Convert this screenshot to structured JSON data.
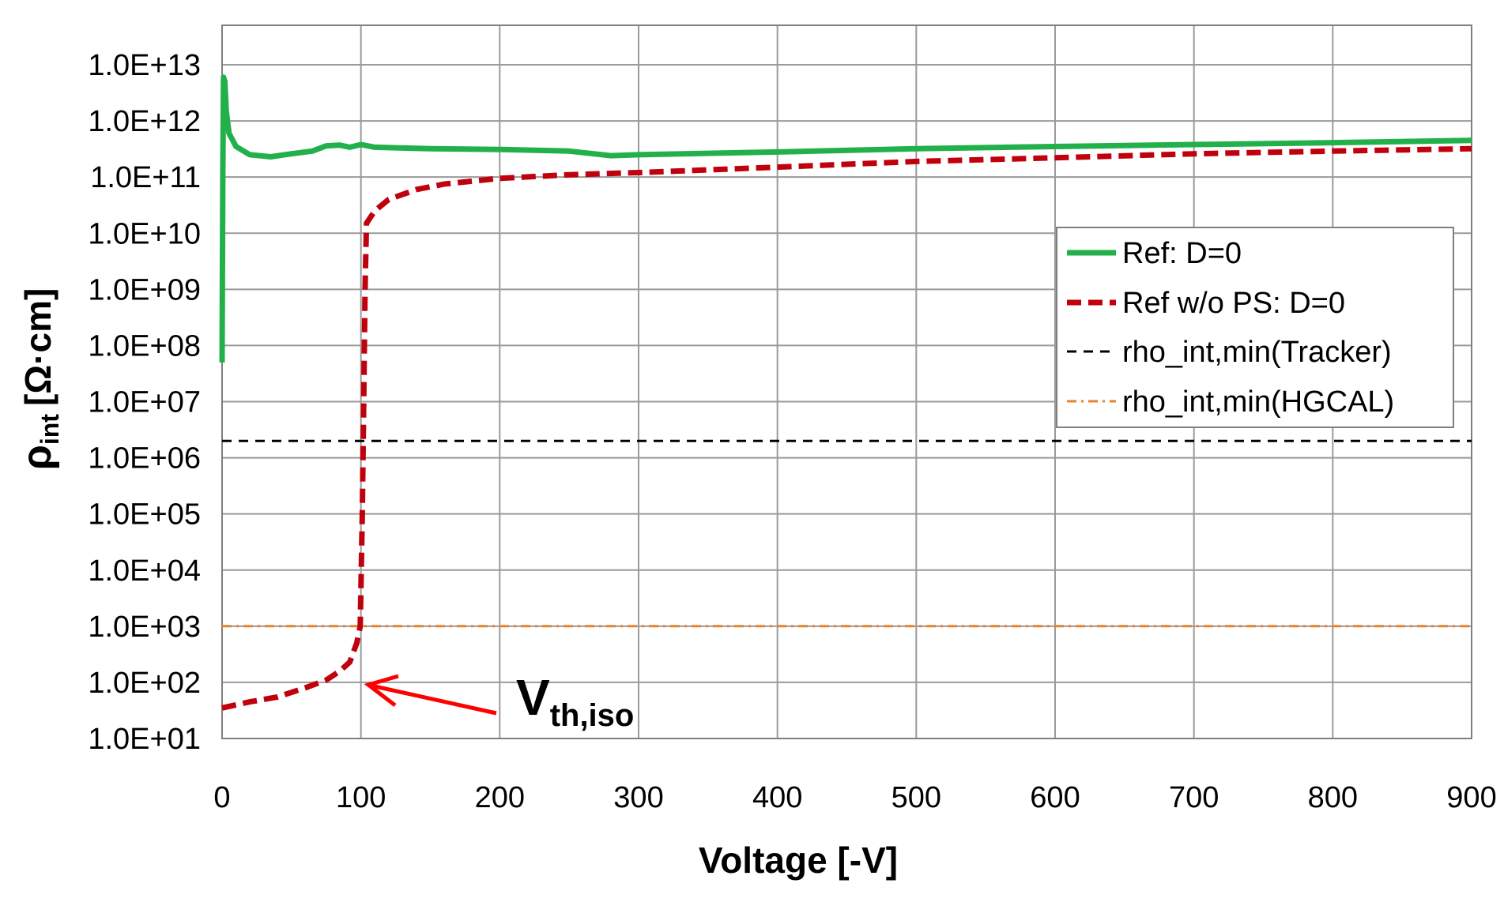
{
  "chart_data": {
    "type": "line",
    "xlabel": "Voltage [-V]",
    "ylabel": {
      "main": "ρ",
      "sub": "int",
      "unit": "[Ω·cm]"
    },
    "xlim": [
      0,
      900
    ],
    "ylim": [
      10,
      10000000000000.0
    ],
    "y_scale": "log",
    "grid": true,
    "legend_position": "right, upper-middle",
    "x_ticks": [
      {
        "value": 0,
        "label": "0"
      },
      {
        "value": 100,
        "label": "100"
      },
      {
        "value": 200,
        "label": "200"
      },
      {
        "value": 300,
        "label": "300"
      },
      {
        "value": 400,
        "label": "400"
      },
      {
        "value": 500,
        "label": "500"
      },
      {
        "value": 600,
        "label": "600"
      },
      {
        "value": 700,
        "label": "700"
      },
      {
        "value": 800,
        "label": "800"
      },
      {
        "value": 900,
        "label": "900"
      }
    ],
    "y_ticks": [
      {
        "value": 10,
        "label": "1.0E+01"
      },
      {
        "value": 100,
        "label": "1.0E+02"
      },
      {
        "value": 1000,
        "label": "1.0E+03"
      },
      {
        "value": 10000,
        "label": "1.0E+04"
      },
      {
        "value": 100000,
        "label": "1.0E+05"
      },
      {
        "value": 1000000,
        "label": "1.0E+06"
      },
      {
        "value": 10000000,
        "label": "1.0E+07"
      },
      {
        "value": 100000000,
        "label": "1.0E+08"
      },
      {
        "value": 1000000000,
        "label": "1.0E+09"
      },
      {
        "value": 10000000000,
        "label": "1.0E+10"
      },
      {
        "value": 100000000000,
        "label": "1.0E+11"
      },
      {
        "value": 1000000000000,
        "label": "1.0E+12"
      },
      {
        "value": 10000000000000,
        "label": "1.0E+13"
      }
    ],
    "series": [
      {
        "name": "Ref: D=0",
        "color": "#22b04a",
        "style": "solid",
        "points": [
          [
            0,
            50000000.0
          ],
          [
            0.5,
            100000000000.0
          ],
          [
            1,
            6000000000000.0
          ],
          [
            2,
            5000000000000.0
          ],
          [
            3,
            1500000000000.0
          ],
          [
            5,
            600000000000.0
          ],
          [
            10,
            350000000000.0
          ],
          [
            20,
            250000000000.0
          ],
          [
            35,
            230000000000.0
          ],
          [
            50,
            260000000000.0
          ],
          [
            65,
            290000000000.0
          ],
          [
            75,
            360000000000.0
          ],
          [
            85,
            370000000000.0
          ],
          [
            92,
            340000000000.0
          ],
          [
            100,
            380000000000.0
          ],
          [
            110,
            340000000000.0
          ],
          [
            150,
            320000000000.0
          ],
          [
            200,
            310000000000.0
          ],
          [
            250,
            290000000000.0
          ],
          [
            280,
            240000000000.0
          ],
          [
            300,
            250000000000.0
          ],
          [
            400,
            280000000000.0
          ],
          [
            500,
            320000000000.0
          ],
          [
            600,
            350000000000.0
          ],
          [
            700,
            380000000000.0
          ],
          [
            800,
            410000000000.0
          ],
          [
            900,
            450000000000.0
          ]
        ]
      },
      {
        "name": "Ref w/o PS: D=0",
        "color": "#c0000c",
        "style": "dashed",
        "points": [
          [
            0,
            35
          ],
          [
            20,
            45
          ],
          [
            40,
            55
          ],
          [
            60,
            80
          ],
          [
            75,
            110
          ],
          [
            85,
            160
          ],
          [
            92,
            230
          ],
          [
            97,
            500
          ],
          [
            99.5,
            1000
          ],
          [
            101,
            100000.0
          ],
          [
            102,
            10000000.0
          ],
          [
            103,
            1000000000.0
          ],
          [
            104,
            15000000000.0
          ],
          [
            110,
            25000000000.0
          ],
          [
            120,
            40000000000.0
          ],
          [
            140,
            60000000000.0
          ],
          [
            160,
            75000000000.0
          ],
          [
            200,
            95000000000.0
          ],
          [
            250,
            110000000000.0
          ],
          [
            300,
            120000000000.0
          ],
          [
            400,
            150000000000.0
          ],
          [
            500,
            190000000000.0
          ],
          [
            600,
            220000000000.0
          ],
          [
            700,
            260000000000.0
          ],
          [
            800,
            290000000000.0
          ],
          [
            900,
            320000000000.0
          ]
        ]
      },
      {
        "name": "rho_int,min(Tracker)",
        "color": "#000000",
        "style": "dashed-thin",
        "points": [
          [
            0,
            2000000.0
          ],
          [
            900,
            2000000.0
          ]
        ]
      },
      {
        "name": "rho_int,min(HGCAL)",
        "color": "#e8822a",
        "style": "dashdot",
        "points": [
          [
            0,
            1000
          ],
          [
            900,
            1000
          ]
        ]
      }
    ],
    "annotation": {
      "main": "V",
      "sub": "th,iso",
      "arrow_target": [
        105,
        100
      ],
      "arrow_color": "#ff0000"
    }
  }
}
